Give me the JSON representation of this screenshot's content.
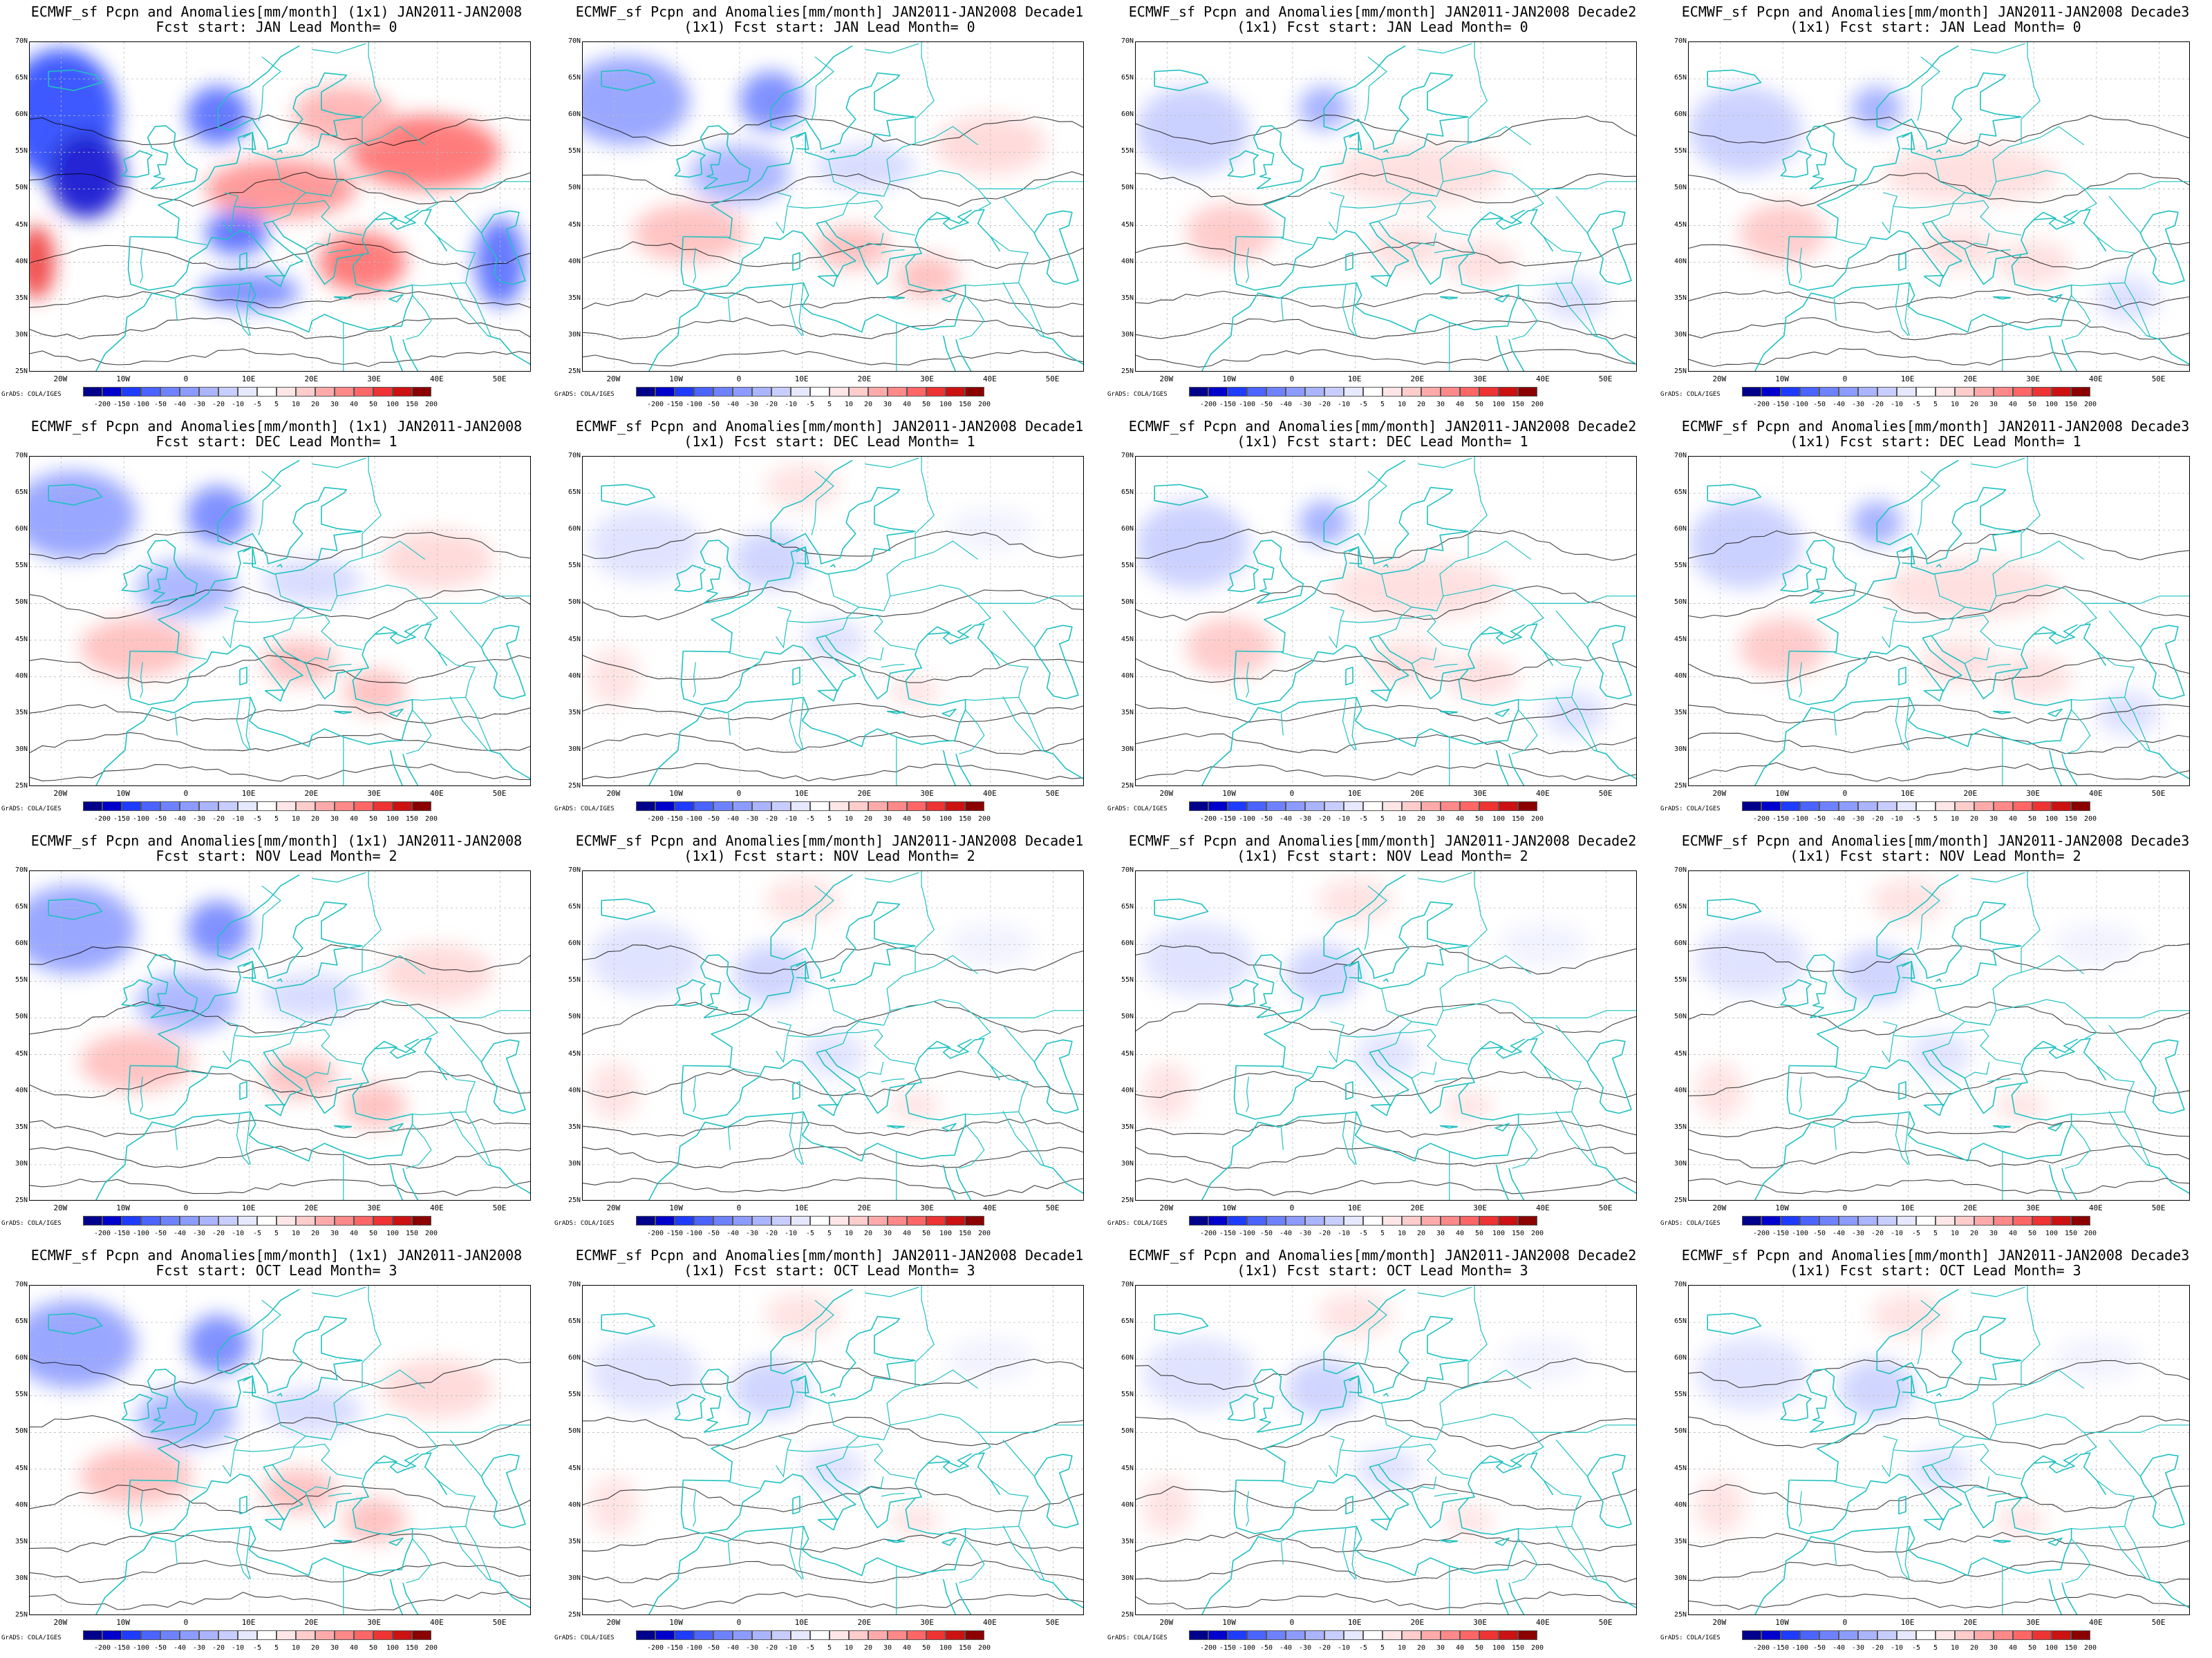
{
  "panels": [
    {
      "title1": "ECMWF_sf Pcpn and Anomalies[mm/month] (1x1) JAN2011-JAN2008",
      "title2": "Fcst start: JAN  Lead Month= 0",
      "pattern": "strong"
    },
    {
      "title1": "ECMWF_sf Pcpn and Anomalies[mm/month] JAN2011-JAN2008 Decade1",
      "title2": "(1x1) Fcst start: JAN  Lead Month= 0",
      "pattern": "medium"
    },
    {
      "title1": "ECMWF_sf Pcpn and Anomalies[mm/month] JAN2011-JAN2008 Decade2",
      "title2": "(1x1) Fcst start: JAN  Lead Month= 0",
      "pattern": "mild"
    },
    {
      "title1": "ECMWF_sf Pcpn and Anomalies[mm/month] JAN2011-JAN2008 Decade3",
      "title2": "(1x1) Fcst start: JAN  Lead Month= 0",
      "pattern": "mild"
    },
    {
      "title1": "ECMWF_sf Pcpn and Anomalies[mm/month] (1x1) JAN2011-JAN2008",
      "title2": "Fcst start: DEC  Lead Month= 1",
      "pattern": "medium"
    },
    {
      "title1": "ECMWF_sf Pcpn and Anomalies[mm/month] JAN2011-JAN2008 Decade1",
      "title2": "(1x1) Fcst start: DEC  Lead Month= 1",
      "pattern": "weak"
    },
    {
      "title1": "ECMWF_sf Pcpn and Anomalies[mm/month] JAN2011-JAN2008 Decade2",
      "title2": "(1x1) Fcst start: DEC  Lead Month= 1",
      "pattern": "mild"
    },
    {
      "title1": "ECMWF_sf Pcpn and Anomalies[mm/month] JAN2011-JAN2008 Decade3",
      "title2": "(1x1) Fcst start: DEC  Lead Month= 1",
      "pattern": "mild"
    },
    {
      "title1": "ECMWF_sf Pcpn and Anomalies[mm/month] (1x1) JAN2011-JAN2008",
      "title2": "Fcst start: NOV  Lead Month= 2",
      "pattern": "medium"
    },
    {
      "title1": "ECMWF_sf Pcpn and Anomalies[mm/month] JAN2011-JAN2008 Decade1",
      "title2": "(1x1) Fcst start: NOV  Lead Month= 2",
      "pattern": "weak"
    },
    {
      "title1": "ECMWF_sf Pcpn and Anomalies[mm/month] JAN2011-JAN2008 Decade2",
      "title2": "(1x1) Fcst start: NOV  Lead Month= 2",
      "pattern": "weak"
    },
    {
      "title1": "ECMWF_sf Pcpn and Anomalies[mm/month] JAN2011-JAN2008 Decade3",
      "title2": "(1x1) Fcst start: NOV  Lead Month= 2",
      "pattern": "weak"
    },
    {
      "title1": "ECMWF_sf Pcpn and Anomalies[mm/month] (1x1) JAN2011-JAN2008",
      "title2": "Fcst start: OCT  Lead Month= 3",
      "pattern": "medium"
    },
    {
      "title1": "ECMWF_sf Pcpn and Anomalies[mm/month] JAN2011-JAN2008 Decade1",
      "title2": "(1x1) Fcst start: OCT  Lead Month= 3",
      "pattern": "weak"
    },
    {
      "title1": "ECMWF_sf Pcpn and Anomalies[mm/month] JAN2011-JAN2008 Decade2",
      "title2": "(1x1) Fcst start: OCT  Lead Month= 3",
      "pattern": "weak"
    },
    {
      "title1": "ECMWF_sf Pcpn and Anomalies[mm/month] JAN2011-JAN2008 Decade3",
      "title2": "(1x1) Fcst start: OCT  Lead Month= 3",
      "pattern": "weak"
    }
  ],
  "lat_labels": [
    "70N",
    "65N",
    "60N",
    "55N",
    "50N",
    "45N",
    "40N",
    "35N",
    "30N",
    "25N"
  ],
  "lon_labels": [
    "20W",
    "10W",
    "0",
    "10E",
    "20E",
    "30E",
    "40E",
    "50E"
  ],
  "colorbar": {
    "labels": [
      "-200",
      "-150",
      "-100",
      "-50",
      "-40",
      "-30",
      "-20",
      "-10",
      "-5",
      "5",
      "10",
      "20",
      "30",
      "40",
      "50",
      "100",
      "150",
      "200"
    ],
    "colors": [
      "#00008b",
      "#0000cd",
      "#1e3cff",
      "#4b64ff",
      "#6e82ff",
      "#8c9bff",
      "#aab4ff",
      "#c8cdff",
      "#e6e8ff",
      "#ffffff",
      "#ffe6e6",
      "#ffcccc",
      "#ffaaaa",
      "#ff8888",
      "#ff6666",
      "#ee3333",
      "#cc1111",
      "#8b0000"
    ]
  },
  "credit": "GrADS: COLA/IGES",
  "colors": {
    "coast": "#20c0c0",
    "contour": "#000000",
    "grid": "#bbbbbb"
  }
}
